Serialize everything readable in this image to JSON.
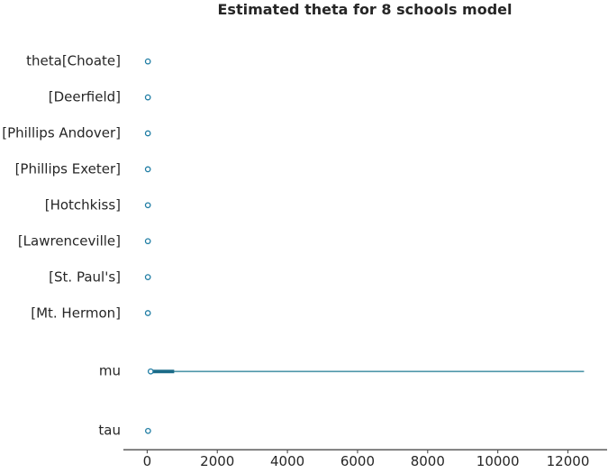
{
  "chart_data": {
    "type": "forest",
    "title": "Estimated theta for 8 schools model",
    "xlabel": "",
    "ylabel": "",
    "grid": false,
    "legend": null,
    "xticks": [
      0,
      2000,
      4000,
      6000,
      8000,
      10000,
      12000
    ],
    "xlim": [
      -680,
      13120
    ],
    "rows": [
      {
        "label": "theta[Choate]",
        "point": 20
      },
      {
        "label": "[Deerfield]",
        "point": 20
      },
      {
        "label": "[Phillips Andover]",
        "point": 20
      },
      {
        "label": "[Phillips Exeter]",
        "point": 20
      },
      {
        "label": "[Hotchkiss]",
        "point": 20
      },
      {
        "label": "[Lawrenceville]",
        "point": 20
      },
      {
        "label": "[St. Paul's]",
        "point": 20
      },
      {
        "label": "[Mt. Hermon]",
        "point": 20
      },
      {
        "label": "mu",
        "point": 100,
        "interval_50": [
          140,
          770
        ],
        "interval_94": [
          100,
          12460
        ]
      },
      {
        "label": "tau",
        "point": 25
      }
    ],
    "colors": {
      "marker_stroke": "#1e7ca3",
      "marker_fill": "#ffffff",
      "interval_thick": "#1a6a87",
      "interval_thin": "#4e96a9",
      "axis": "#4c4c4c",
      "text": "#262626",
      "background": "#ffffff"
    }
  }
}
